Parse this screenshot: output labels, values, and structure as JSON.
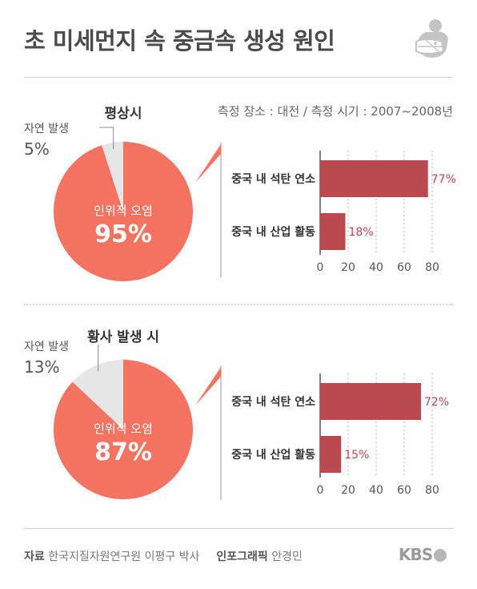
{
  "title": "초 미세먼지 속 중금속 생성 원인",
  "meta": "측정 장소 : 대전 / 측정 시기 : 2007~2008년",
  "icon": "mask-icon",
  "footer": {
    "source_label": "자료",
    "source_value": "한국지질자원연구원 이평구 박사",
    "graphic_label": "인포그래픽",
    "graphic_value": "안경민"
  },
  "logo": "KBS",
  "colors": {
    "pie_main": "#f47461",
    "pie_minor": "#e6e6e6",
    "bar": "#b94a50",
    "bar_label": "#b94a50"
  },
  "chart_data": [
    {
      "type": "pie",
      "title": "평상시",
      "slices": [
        {
          "label": "인위적 오염",
          "value": 95,
          "display": "95%"
        },
        {
          "label": "자연 발생",
          "value": 5,
          "display": "5%"
        }
      ]
    },
    {
      "type": "bar",
      "orientation": "horizontal",
      "categories": [
        "중국 내 석탄 연소",
        "중국 내 산업 활동"
      ],
      "values": [
        77,
        18
      ],
      "value_labels": [
        "77%",
        "18%"
      ],
      "xticks": [
        "0",
        "20",
        "40",
        "60",
        "80"
      ],
      "xlim": [
        0,
        80
      ],
      "grid": true
    },
    {
      "type": "pie",
      "title": "황사 발생 시",
      "slices": [
        {
          "label": "인위적 오염",
          "value": 87,
          "display": "87%"
        },
        {
          "label": "자연 발생",
          "value": 13,
          "display": "13%"
        }
      ]
    },
    {
      "type": "bar",
      "orientation": "horizontal",
      "categories": [
        "중국 내 석탄 연소",
        "중국 내 산업 활동"
      ],
      "values": [
        72,
        15
      ],
      "value_labels": [
        "72%",
        "15%"
      ],
      "xticks": [
        "0",
        "20",
        "40",
        "60",
        "80"
      ],
      "xlim": [
        0,
        80
      ],
      "grid": true
    }
  ]
}
